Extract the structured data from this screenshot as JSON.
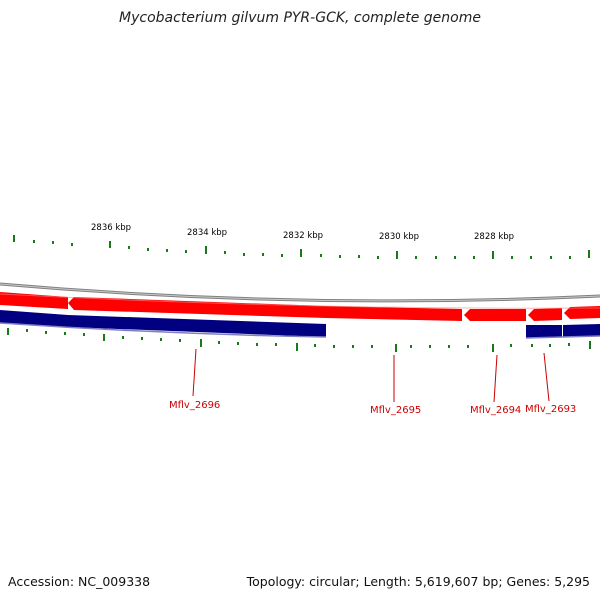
{
  "title": "Mycobacterium gilvum PYR-GCK, complete genome",
  "footer": {
    "accession": "Accession: NC_009338",
    "summary": "Topology: circular; Length: 5,619,607 bp; Genes: 5,295"
  },
  "scale_labels": [
    "2836 kbp",
    "2834 kbp",
    "2832 kbp",
    "2830 kbp",
    "2828 kbp"
  ],
  "gene_labels": [
    "Mflv_2696",
    "Mflv_2695",
    "Mflv_2694",
    "Mflv_2693"
  ],
  "colors": {
    "forward_strand": "#ff0000",
    "reverse_strand": "#000080",
    "backbone": "#808080",
    "tick": "#1a7a1a",
    "gene_label": "#cc0000"
  }
}
